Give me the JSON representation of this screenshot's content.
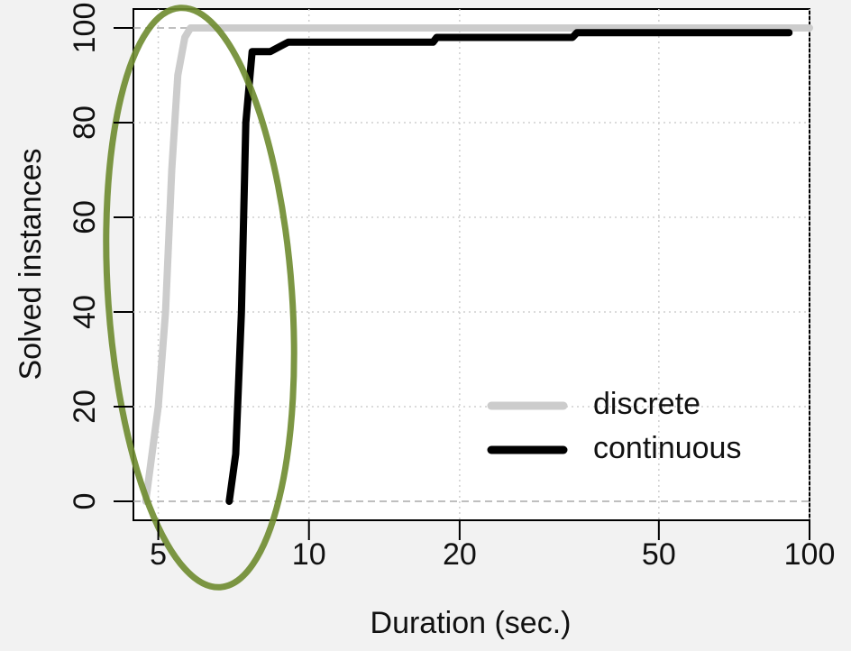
{
  "chart_data": {
    "type": "line",
    "x_label": "Duration (sec.)",
    "y_label": "Solved instances",
    "x_log": true,
    "grid": true,
    "legend": "bottom-right",
    "xlim": [
      4.46,
      100
    ],
    "ylim": [
      -4,
      104
    ],
    "xticks": [
      5,
      10,
      20,
      50,
      100
    ],
    "yticks": [
      0,
      20,
      40,
      60,
      80,
      100
    ],
    "series": [
      {
        "name": "discrete",
        "color": "#cccccc",
        "x": [
          4.72,
          5.0,
          5.17,
          5.32,
          5.47,
          5.65,
          5.8,
          100
        ],
        "values": [
          0,
          20,
          40,
          70,
          90,
          98,
          100,
          100
        ]
      },
      {
        "name": "continuous",
        "color": "#000000",
        "x": [
          6.93,
          7.14,
          7.33,
          7.48,
          7.7,
          8.37,
          8.72,
          9.09,
          17.7,
          18.0,
          33.6,
          34.3,
          91
        ],
        "values": [
          0,
          10,
          40,
          80,
          95,
          95,
          96,
          97,
          97,
          98,
          98,
          99,
          99
        ]
      }
    ]
  }
}
